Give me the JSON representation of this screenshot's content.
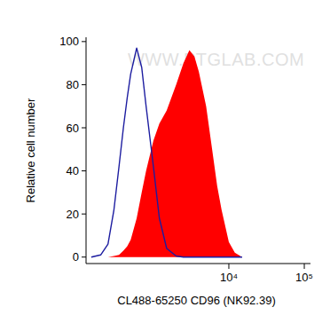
{
  "chart_data": {
    "type": "area",
    "x_label": "CL488-65250 CD96 (NK92.39)",
    "y_label": "Relative cell number",
    "annotations": [
      "WWW.PTGLAB.COM"
    ],
    "log": "x",
    "x": [
      150,
      200,
      250,
      300,
      350,
      400,
      450,
      500,
      600,
      700,
      800,
      1000,
      1200,
      1500,
      2000,
      2500,
      3000,
      3500,
      4000,
      5000,
      6000,
      7000,
      8000,
      10000,
      12000,
      15000
    ],
    "series": [
      {
        "type": "area",
        "color": "#ff0000",
        "values": [
          0,
          0,
          0,
          0.5,
          1,
          3,
          5,
          8,
          18,
          30,
          40,
          54,
          62,
          68,
          80,
          90,
          96,
          93,
          86,
          70,
          50,
          33,
          22,
          7,
          2,
          0
        ]
      },
      {
        "type": "line",
        "color": "#1c1ca0",
        "values": [
          0,
          1,
          6,
          22,
          42,
          60,
          74,
          85,
          97,
          88,
          70,
          42,
          18,
          4,
          0.5,
          0,
          0,
          0,
          0,
          0,
          0,
          0,
          0,
          0,
          0,
          0
        ]
      }
    ],
    "xlim": [
      128,
      120800
    ],
    "xticks": [
      {
        "value": 10000,
        "label": "10⁴"
      },
      {
        "value": 100000,
        "label": "10⁵"
      }
    ],
    "ylim": [
      -3,
      102
    ],
    "yticks": [
      0,
      20,
      40,
      60,
      80,
      100
    ]
  }
}
